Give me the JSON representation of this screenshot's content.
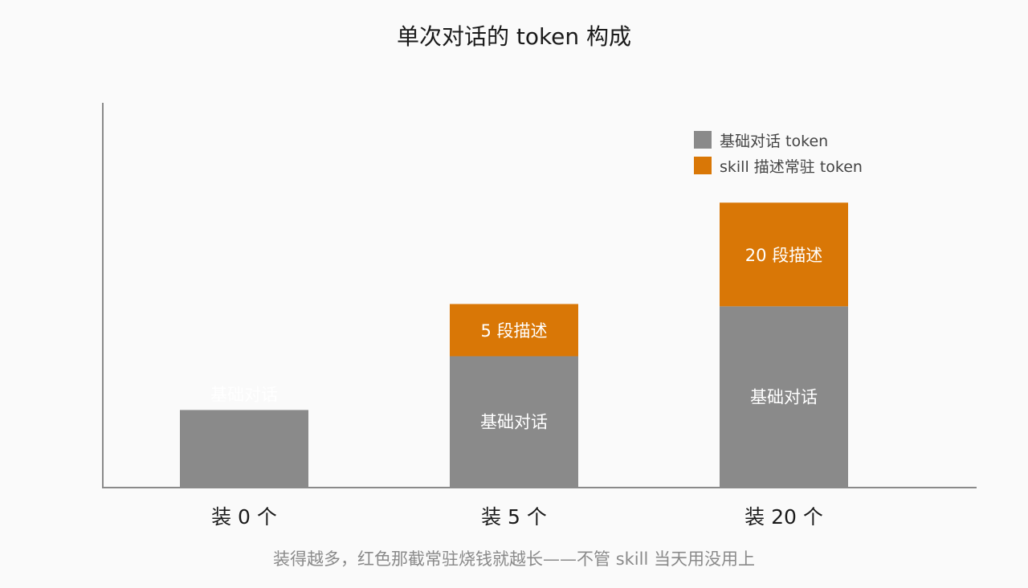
{
  "chart_data": {
    "type": "bar",
    "stacked": true,
    "title": "单次对话的 token 构成",
    "caption": "装得越多，红色那截常驻烧钱就越长——不管 skill 当天用没用上",
    "categories": [
      "装 0 个",
      "装 5 个",
      "装 20 个"
    ],
    "series": [
      {
        "name": "基础对话 token",
        "color": "#8a8a8a",
        "values": [
          1.0,
          1.7,
          2.35
        ],
        "labels": [
          "基础对话",
          "基础对话",
          "基础对话"
        ]
      },
      {
        "name": "skill 描述常驻 token",
        "color": "#d97706",
        "values": [
          0,
          0.68,
          1.35
        ],
        "labels": [
          "",
          "5 段描述",
          "20 段描述"
        ]
      }
    ],
    "ylim": [
      0,
      5
    ],
    "xlabel": "",
    "ylabel": "",
    "legend_position": "top-right",
    "grid": false
  }
}
